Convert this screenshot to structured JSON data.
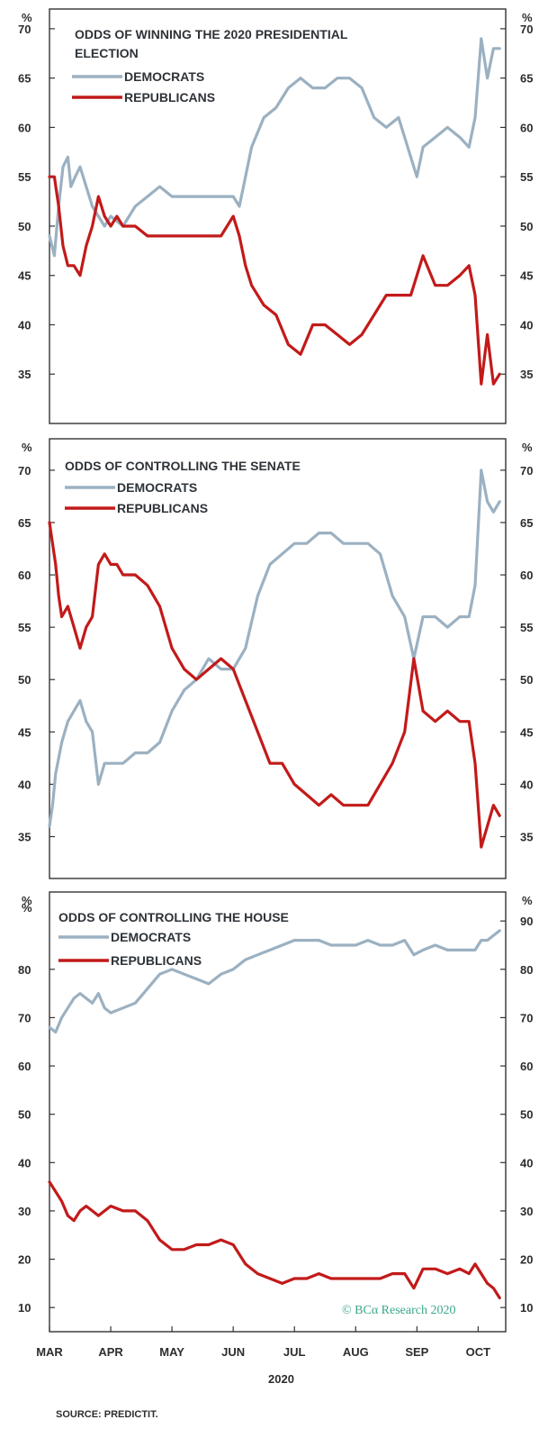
{
  "colors": {
    "democrats": "#9bb1c2",
    "republicans": "#c21a1a",
    "credit": "#3aa58b"
  },
  "credit": "© BCα Research 2020",
  "source": "SOURCE: PREDICTIT.",
  "year_label": "2020",
  "chart_data": [
    {
      "type": "line",
      "title_lines": [
        "ODDS OF WINNING THE 2020 PRESIDENTIAL",
        "ELECTION"
      ],
      "ylabel": "%",
      "ylim": [
        30,
        72
      ],
      "yticks": [
        35,
        40,
        45,
        50,
        55,
        60,
        65,
        70
      ],
      "xlim": [
        0,
        7.45
      ],
      "xtick_labels": [
        "MAR",
        "APR",
        "MAY",
        "JUN",
        "JUL",
        "AUG",
        "SEP",
        "OCT"
      ],
      "x_note": "x = months since start of March 2020",
      "series": [
        {
          "name": "DEMOCRATS",
          "color": "democrats",
          "x": [
            0,
            0.08,
            0.15,
            0.22,
            0.3,
            0.35,
            0.42,
            0.5,
            0.6,
            0.7,
            0.8,
            0.9,
            1.0,
            1.2,
            1.4,
            1.6,
            1.8,
            2.0,
            2.2,
            2.4,
            2.6,
            2.8,
            3.0,
            3.1,
            3.2,
            3.3,
            3.5,
            3.7,
            3.9,
            4.1,
            4.3,
            4.5,
            4.7,
            4.9,
            5.1,
            5.3,
            5.5,
            5.7,
            5.9,
            6.0,
            6.1,
            6.3,
            6.5,
            6.7,
            6.85,
            6.95,
            7.05,
            7.15,
            7.25,
            7.35
          ],
          "values": [
            49,
            47,
            52,
            56,
            57,
            54,
            55,
            56,
            54,
            52,
            51,
            50,
            51,
            50,
            52,
            53,
            54,
            53,
            53,
            53,
            53,
            53,
            53,
            52,
            55,
            58,
            61,
            62,
            64,
            65,
            64,
            64,
            65,
            65,
            64,
            61,
            60,
            61,
            57,
            55,
            58,
            59,
            60,
            59,
            58,
            61,
            69,
            65,
            68,
            68
          ]
        },
        {
          "name": "REPUBLICANS",
          "color": "republicans",
          "x": [
            0,
            0.08,
            0.15,
            0.22,
            0.3,
            0.4,
            0.5,
            0.6,
            0.7,
            0.8,
            0.9,
            1.0,
            1.1,
            1.2,
            1.4,
            1.6,
            1.8,
            2.0,
            2.2,
            2.4,
            2.6,
            2.8,
            3.0,
            3.1,
            3.2,
            3.3,
            3.5,
            3.7,
            3.9,
            4.1,
            4.3,
            4.5,
            4.7,
            4.9,
            5.1,
            5.3,
            5.5,
            5.7,
            5.9,
            6.0,
            6.1,
            6.3,
            6.5,
            6.7,
            6.85,
            6.95,
            7.05,
            7.15,
            7.25,
            7.35
          ],
          "values": [
            55,
            55,
            52,
            48,
            46,
            46,
            45,
            48,
            50,
            53,
            51,
            50,
            51,
            50,
            50,
            49,
            49,
            49,
            49,
            49,
            49,
            49,
            51,
            49,
            46,
            44,
            42,
            41,
            38,
            37,
            40,
            40,
            39,
            38,
            39,
            41,
            43,
            43,
            43,
            45,
            47,
            44,
            44,
            45,
            46,
            43,
            34,
            39,
            34,
            35
          ]
        }
      ]
    },
    {
      "type": "line",
      "title_lines": [
        "ODDS OF CONTROLLING THE SENATE"
      ],
      "ylabel": "%",
      "ylim": [
        31,
        73
      ],
      "yticks": [
        35,
        40,
        45,
        50,
        55,
        60,
        65,
        70
      ],
      "xlim": [
        0,
        7.45
      ],
      "xtick_labels": [
        "MAR",
        "APR",
        "MAY",
        "JUN",
        "JUL",
        "AUG",
        "SEP",
        "OCT"
      ],
      "series": [
        {
          "name": "DEMOCRATS",
          "color": "democrats",
          "x": [
            0,
            0.05,
            0.1,
            0.2,
            0.3,
            0.4,
            0.5,
            0.6,
            0.7,
            0.8,
            0.9,
            1.0,
            1.2,
            1.4,
            1.6,
            1.8,
            2.0,
            2.2,
            2.4,
            2.6,
            2.8,
            3.0,
            3.2,
            3.4,
            3.6,
            3.8,
            4.0,
            4.2,
            4.4,
            4.6,
            4.8,
            5.0,
            5.2,
            5.4,
            5.6,
            5.8,
            5.95,
            6.1,
            6.3,
            6.5,
            6.7,
            6.85,
            6.95,
            7.05,
            7.15,
            7.25,
            7.35
          ],
          "values": [
            36,
            38,
            41,
            44,
            46,
            47,
            48,
            46,
            45,
            40,
            42,
            42,
            42,
            43,
            43,
            44,
            47,
            49,
            50,
            52,
            51,
            51,
            53,
            58,
            61,
            62,
            63,
            63,
            64,
            64,
            63,
            63,
            63,
            62,
            58,
            56,
            52,
            56,
            56,
            55,
            56,
            56,
            59,
            70,
            67,
            66,
            67
          ]
        },
        {
          "name": "REPUBLICANS",
          "color": "republicans",
          "x": [
            0,
            0.05,
            0.1,
            0.15,
            0.2,
            0.3,
            0.4,
            0.5,
            0.6,
            0.7,
            0.8,
            0.9,
            1.0,
            1.1,
            1.2,
            1.4,
            1.6,
            1.8,
            2.0,
            2.2,
            2.4,
            2.6,
            2.8,
            3.0,
            3.2,
            3.4,
            3.6,
            3.8,
            4.0,
            4.2,
            4.4,
            4.6,
            4.8,
            5.0,
            5.2,
            5.4,
            5.6,
            5.8,
            5.95,
            6.1,
            6.3,
            6.5,
            6.7,
            6.85,
            6.95,
            7.05,
            7.15,
            7.25,
            7.35
          ],
          "values": [
            65,
            63,
            61,
            58,
            56,
            57,
            55,
            53,
            55,
            56,
            61,
            62,
            61,
            61,
            60,
            60,
            59,
            57,
            53,
            51,
            50,
            51,
            52,
            51,
            48,
            45,
            42,
            42,
            40,
            39,
            38,
            39,
            38,
            38,
            38,
            40,
            42,
            45,
            52,
            47,
            46,
            47,
            46,
            46,
            42,
            34,
            36,
            38,
            37
          ]
        }
      ]
    },
    {
      "type": "line",
      "title_lines": [
        "ODDS OF CONTROLLING THE HOUSE"
      ],
      "ylabel": "%",
      "ylim": [
        5,
        96
      ],
      "yticks": [
        10,
        20,
        30,
        40,
        50,
        60,
        70,
        80,
        90
      ],
      "left_ticks_hide": [
        90
      ],
      "xlim": [
        0,
        7.45
      ],
      "xtick_labels": [
        "MAR",
        "APR",
        "MAY",
        "JUN",
        "JUL",
        "AUG",
        "SEP",
        "OCT"
      ],
      "series": [
        {
          "name": "DEMOCRATS",
          "color": "democrats",
          "x": [
            0,
            0.1,
            0.2,
            0.3,
            0.4,
            0.5,
            0.6,
            0.7,
            0.8,
            0.9,
            1.0,
            1.2,
            1.4,
            1.6,
            1.8,
            2.0,
            2.2,
            2.4,
            2.6,
            2.8,
            3.0,
            3.2,
            3.4,
            3.6,
            3.8,
            4.0,
            4.2,
            4.4,
            4.6,
            4.8,
            5.0,
            5.2,
            5.4,
            5.6,
            5.8,
            5.95,
            6.1,
            6.3,
            6.5,
            6.7,
            6.85,
            6.95,
            7.05,
            7.15,
            7.25,
            7.35
          ],
          "values": [
            68,
            67,
            70,
            72,
            74,
            75,
            74,
            73,
            75,
            72,
            71,
            72,
            73,
            76,
            79,
            80,
            79,
            78,
            77,
            79,
            80,
            82,
            83,
            84,
            85,
            86,
            86,
            86,
            85,
            85,
            85,
            86,
            85,
            85,
            86,
            83,
            84,
            85,
            84,
            84,
            84,
            84,
            86,
            86,
            87,
            88
          ]
        },
        {
          "name": "REPUBLICANS",
          "color": "republicans",
          "x": [
            0,
            0.1,
            0.2,
            0.3,
            0.4,
            0.5,
            0.6,
            0.7,
            0.8,
            0.9,
            1.0,
            1.2,
            1.4,
            1.6,
            1.8,
            2.0,
            2.2,
            2.4,
            2.6,
            2.8,
            3.0,
            3.2,
            3.4,
            3.6,
            3.8,
            4.0,
            4.2,
            4.4,
            4.6,
            4.8,
            5.0,
            5.2,
            5.4,
            5.6,
            5.8,
            5.95,
            6.1,
            6.3,
            6.5,
            6.7,
            6.85,
            6.95,
            7.05,
            7.15,
            7.25,
            7.35
          ],
          "values": [
            36,
            34,
            32,
            29,
            28,
            30,
            31,
            30,
            29,
            30,
            31,
            30,
            30,
            28,
            24,
            22,
            22,
            23,
            23,
            24,
            23,
            19,
            17,
            16,
            15,
            16,
            16,
            17,
            16,
            16,
            16,
            16,
            16,
            17,
            17,
            14,
            18,
            18,
            17,
            18,
            17,
            19,
            17,
            15,
            14,
            12
          ]
        }
      ]
    }
  ]
}
